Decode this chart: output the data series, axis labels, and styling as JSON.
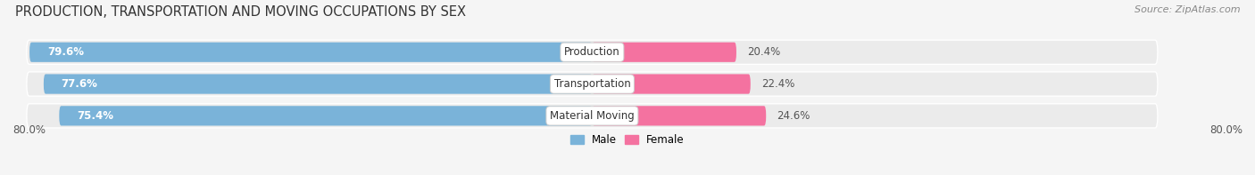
{
  "title": "PRODUCTION, TRANSPORTATION AND MOVING OCCUPATIONS BY SEX",
  "source": "Source: ZipAtlas.com",
  "categories": [
    "Production",
    "Transportation",
    "Material Moving"
  ],
  "male_pct": [
    79.6,
    77.6,
    75.4
  ],
  "female_pct": [
    20.4,
    22.4,
    24.6
  ],
  "male_color": "#7ab3d9",
  "female_color": "#f472a0",
  "bar_bg_color": "#e0e6ee",
  "row_bg_color": "#ebebeb",
  "axis_min": -80.0,
  "axis_max": 80.0,
  "axis_label_left": "80.0%",
  "axis_label_right": "80.0%",
  "title_fontsize": 10.5,
  "source_fontsize": 8,
  "label_fontsize": 8.5,
  "bar_height": 0.62,
  "background_color": "#f5f5f5",
  "legend_male_label": "Male",
  "legend_female_label": "Female"
}
